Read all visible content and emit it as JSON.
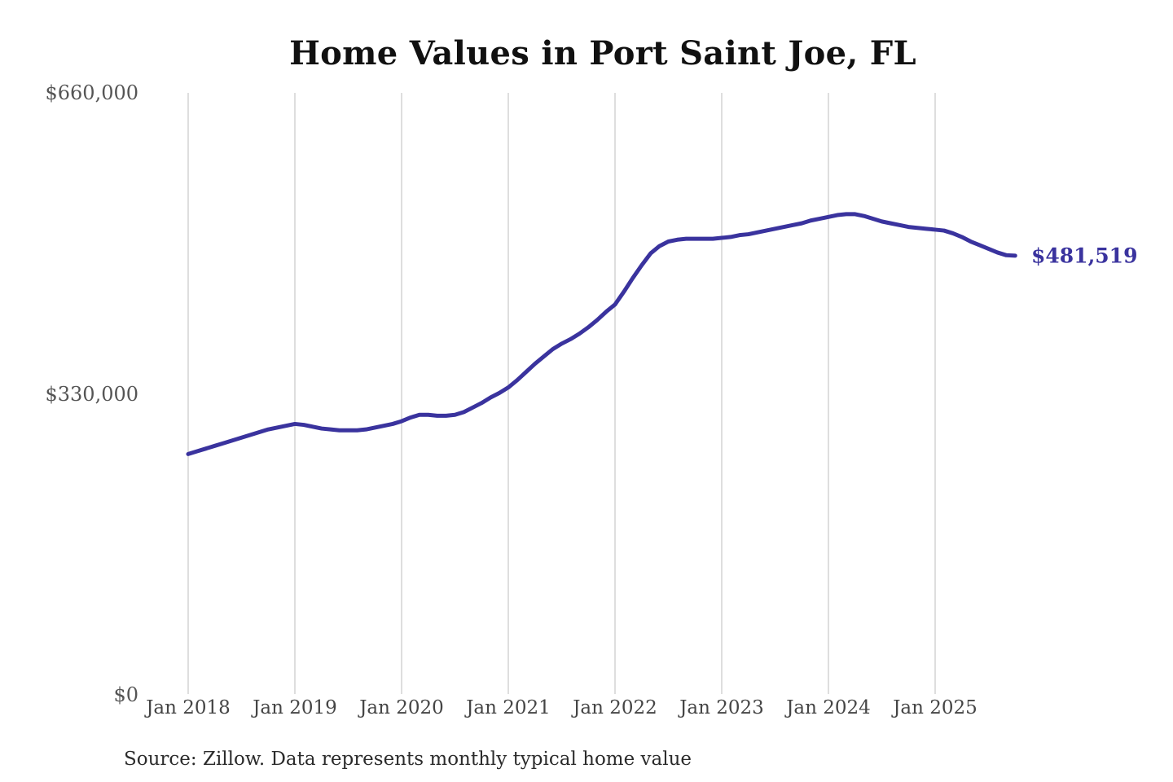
{
  "title": "Home Values in Port Saint Joe, FL",
  "source_note": "Source: Zillow. Data represents monthly typical home value",
  "end_label": "$481,519",
  "colors": {
    "line": "#3a339e",
    "end_label": "#3a339e",
    "grid": "#cccccc",
    "title": "#111111",
    "y_axis_text": "#555555",
    "x_axis_text": "#454545",
    "source_text": "#2b2b2b",
    "background": "#ffffff"
  },
  "chart_data": {
    "type": "line",
    "title": "Home Values in Port Saint Joe, FL",
    "xlabel": "",
    "ylabel": "",
    "ylim": [
      0,
      660000
    ],
    "y_ticks": [
      {
        "value": 0,
        "label": "$0"
      },
      {
        "value": 330000,
        "label": "$330,000"
      },
      {
        "value": 660000,
        "label": "$660,000"
      }
    ],
    "x_ticks": [
      "Jan 2018",
      "Jan 2019",
      "Jan 2020",
      "Jan 2021",
      "Jan 2022",
      "Jan 2023",
      "Jan 2024",
      "Jan 2025"
    ],
    "grid": "vertical-only",
    "legend": "none",
    "series": [
      {
        "name": "Monthly typical home value",
        "frequency": "monthly",
        "start_month": "2018-01",
        "end_month": "2025-10",
        "values": [
          264000,
          267000,
          270000,
          273000,
          276000,
          279000,
          282000,
          285000,
          288000,
          291000,
          293000,
          295000,
          297000,
          296000,
          294000,
          292000,
          291000,
          290000,
          290000,
          290000,
          291000,
          293000,
          295000,
          297000,
          300000,
          304000,
          307000,
          307000,
          306000,
          306000,
          307000,
          310000,
          315000,
          320000,
          326000,
          331000,
          337000,
          345000,
          354000,
          363000,
          371000,
          379000,
          385000,
          390000,
          396000,
          403000,
          411000,
          420000,
          428000,
          442000,
          457000,
          471000,
          484000,
          492000,
          497000,
          499000,
          500000,
          500000,
          500000,
          500000,
          501000,
          502000,
          504000,
          505000,
          507000,
          509000,
          511000,
          513000,
          515000,
          517000,
          520000,
          522000,
          524000,
          526000,
          527000,
          527000,
          525000,
          522000,
          519000,
          517000,
          515000,
          513000,
          512000,
          511000,
          510000,
          509000,
          506000,
          502000,
          497000,
          493000,
          489000,
          485000,
          482000,
          481519
        ]
      }
    ],
    "last_value": 481519,
    "last_value_label": "$481,519"
  }
}
